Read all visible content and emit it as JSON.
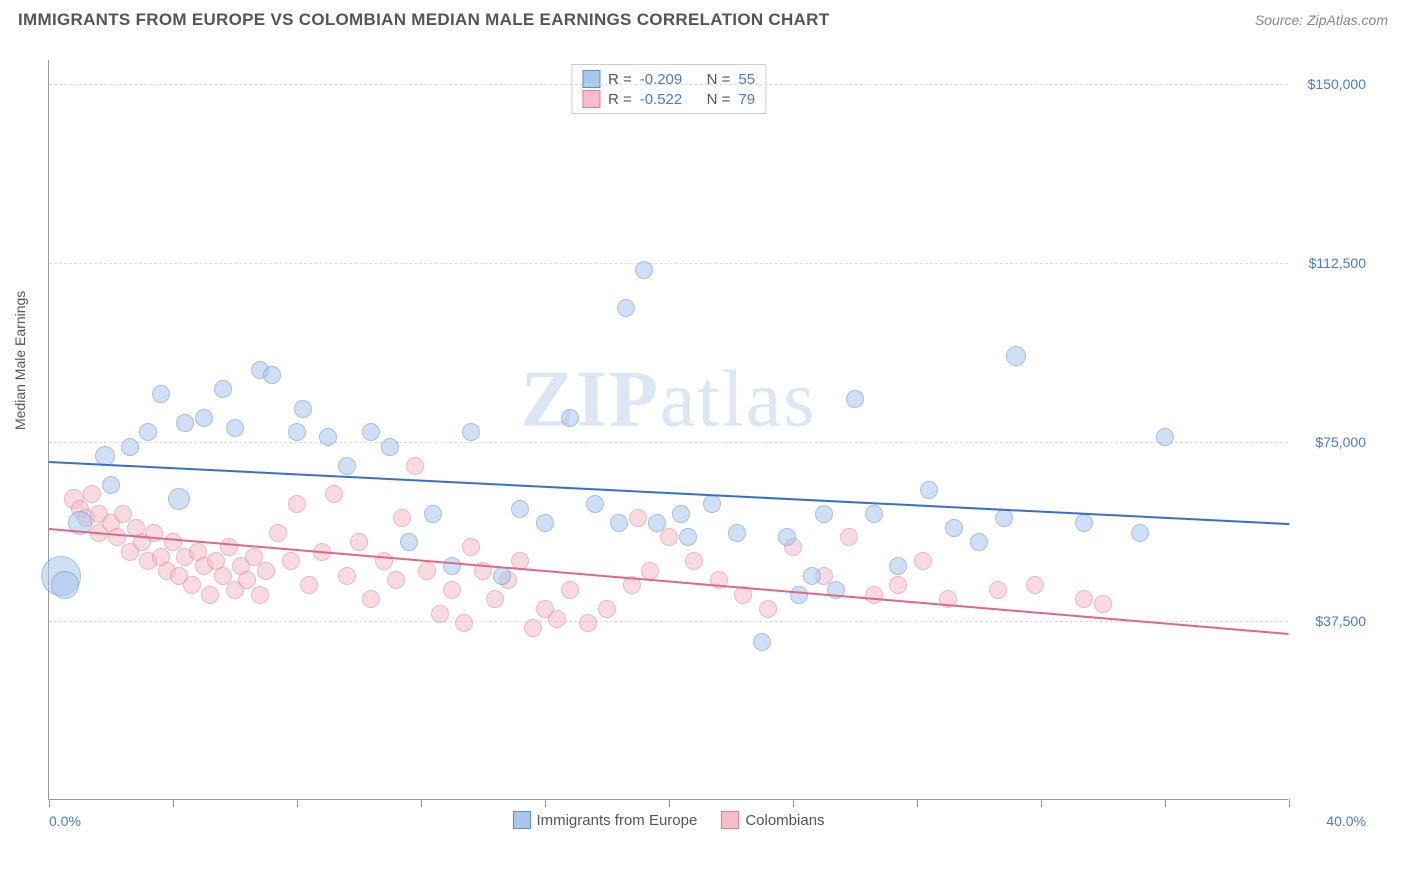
{
  "header": {
    "title": "IMMIGRANTS FROM EUROPE VS COLOMBIAN MEDIAN MALE EARNINGS CORRELATION CHART",
    "source": "Source: ZipAtlas.com"
  },
  "chart": {
    "type": "scatter",
    "y_axis_label": "Median Male Earnings",
    "watermark": "ZIPatlas",
    "background_color": "#ffffff",
    "grid_color": "#dddddd",
    "axis_color": "#999999",
    "xlim": [
      0,
      40
    ],
    "ylim": [
      0,
      155000
    ],
    "x_tick_positions": [
      0,
      4,
      8,
      12,
      16,
      20,
      24,
      28,
      32,
      36,
      40
    ],
    "x_label_min": "0.0%",
    "x_label_max": "40.0%",
    "y_gridlines": [
      {
        "value": 37500,
        "label": "$37,500"
      },
      {
        "value": 75000,
        "label": "$75,000"
      },
      {
        "value": 112500,
        "label": "$112,500"
      },
      {
        "value": 150000,
        "label": "$150,000"
      }
    ],
    "series": [
      {
        "name": "Immigrants from Europe",
        "color_fill": "#a9c6ec",
        "color_stroke": "#5b8fd6",
        "fill_opacity": 0.55,
        "marker_radius": 9,
        "R": "-0.209",
        "N": "55",
        "trend": {
          "y_at_xmin": 71000,
          "y_at_xmax": 58000,
          "color": "#3a6fc7",
          "width": 2
        },
        "points": [
          {
            "x": 0.4,
            "y": 47000,
            "r": 20
          },
          {
            "x": 0.5,
            "y": 45000,
            "r": 14
          },
          {
            "x": 1.0,
            "y": 58000,
            "r": 12
          },
          {
            "x": 1.8,
            "y": 72000,
            "r": 10
          },
          {
            "x": 2.0,
            "y": 66000,
            "r": 9
          },
          {
            "x": 2.6,
            "y": 74000,
            "r": 9
          },
          {
            "x": 3.2,
            "y": 77000,
            "r": 9
          },
          {
            "x": 3.6,
            "y": 85000,
            "r": 9
          },
          {
            "x": 4.4,
            "y": 79000,
            "r": 9
          },
          {
            "x": 4.2,
            "y": 63000,
            "r": 11
          },
          {
            "x": 5.0,
            "y": 80000,
            "r": 9
          },
          {
            "x": 5.6,
            "y": 86000,
            "r": 9
          },
          {
            "x": 6.0,
            "y": 78000,
            "r": 9
          },
          {
            "x": 6.8,
            "y": 90000,
            "r": 9
          },
          {
            "x": 7.2,
            "y": 89000,
            "r": 9
          },
          {
            "x": 8.0,
            "y": 77000,
            "r": 9
          },
          {
            "x": 8.2,
            "y": 82000,
            "r": 9
          },
          {
            "x": 9.0,
            "y": 76000,
            "r": 9
          },
          {
            "x": 9.6,
            "y": 70000,
            "r": 9
          },
          {
            "x": 10.4,
            "y": 77000,
            "r": 9
          },
          {
            "x": 11.0,
            "y": 74000,
            "r": 9
          },
          {
            "x": 11.6,
            "y": 54000,
            "r": 9
          },
          {
            "x": 12.4,
            "y": 60000,
            "r": 9
          },
          {
            "x": 13.0,
            "y": 49000,
            "r": 9
          },
          {
            "x": 13.6,
            "y": 77000,
            "r": 9
          },
          {
            "x": 14.6,
            "y": 47000,
            "r": 9
          },
          {
            "x": 15.2,
            "y": 61000,
            "r": 9
          },
          {
            "x": 16.0,
            "y": 58000,
            "r": 9
          },
          {
            "x": 16.8,
            "y": 80000,
            "r": 9
          },
          {
            "x": 17.6,
            "y": 62000,
            "r": 9
          },
          {
            "x": 18.4,
            "y": 58000,
            "r": 9
          },
          {
            "x": 18.6,
            "y": 103000,
            "r": 9
          },
          {
            "x": 19.6,
            "y": 58000,
            "r": 9
          },
          {
            "x": 19.2,
            "y": 111000,
            "r": 9
          },
          {
            "x": 20.4,
            "y": 60000,
            "r": 9
          },
          {
            "x": 20.6,
            "y": 55000,
            "r": 9
          },
          {
            "x": 21.4,
            "y": 62000,
            "r": 9
          },
          {
            "x": 22.2,
            "y": 56000,
            "r": 9
          },
          {
            "x": 23.0,
            "y": 33000,
            "r": 9
          },
          {
            "x": 23.8,
            "y": 55000,
            "r": 9
          },
          {
            "x": 24.2,
            "y": 43000,
            "r": 9
          },
          {
            "x": 24.6,
            "y": 47000,
            "r": 9
          },
          {
            "x": 25.4,
            "y": 44000,
            "r": 9
          },
          {
            "x": 26.0,
            "y": 84000,
            "r": 9
          },
          {
            "x": 26.6,
            "y": 60000,
            "r": 9
          },
          {
            "x": 27.4,
            "y": 49000,
            "r": 9
          },
          {
            "x": 28.4,
            "y": 65000,
            "r": 9
          },
          {
            "x": 29.2,
            "y": 57000,
            "r": 9
          },
          {
            "x": 30.0,
            "y": 54000,
            "r": 9
          },
          {
            "x": 31.2,
            "y": 93000,
            "r": 10
          },
          {
            "x": 33.4,
            "y": 58000,
            "r": 9
          },
          {
            "x": 35.2,
            "y": 56000,
            "r": 9
          },
          {
            "x": 36.0,
            "y": 76000,
            "r": 9
          },
          {
            "x": 30.8,
            "y": 59000,
            "r": 9
          },
          {
            "x": 25.0,
            "y": 60000,
            "r": 9
          }
        ]
      },
      {
        "name": "Colombians",
        "color_fill": "#f5bcc9",
        "color_stroke": "#e07f9a",
        "fill_opacity": 0.55,
        "marker_radius": 8,
        "R": "-0.522",
        "N": "79",
        "trend": {
          "y_at_xmin": 57000,
          "y_at_xmax": 35000,
          "color": "#e06788",
          "width": 2
        },
        "points": [
          {
            "x": 0.8,
            "y": 63000,
            "r": 10
          },
          {
            "x": 1.0,
            "y": 61000,
            "r": 9
          },
          {
            "x": 1.2,
            "y": 59000,
            "r": 9
          },
          {
            "x": 1.4,
            "y": 64000,
            "r": 9
          },
          {
            "x": 1.6,
            "y": 60000,
            "r": 9
          },
          {
            "x": 1.6,
            "y": 56000,
            "r": 9
          },
          {
            "x": 2.0,
            "y": 58000,
            "r": 9
          },
          {
            "x": 2.2,
            "y": 55000,
            "r": 9
          },
          {
            "x": 2.4,
            "y": 60000,
            "r": 9
          },
          {
            "x": 2.6,
            "y": 52000,
            "r": 9
          },
          {
            "x": 2.8,
            "y": 57000,
            "r": 9
          },
          {
            "x": 3.0,
            "y": 54000,
            "r": 9
          },
          {
            "x": 3.2,
            "y": 50000,
            "r": 9
          },
          {
            "x": 3.4,
            "y": 56000,
            "r": 9
          },
          {
            "x": 3.6,
            "y": 51000,
            "r": 9
          },
          {
            "x": 3.8,
            "y": 48000,
            "r": 9
          },
          {
            "x": 4.0,
            "y": 54000,
            "r": 9
          },
          {
            "x": 4.2,
            "y": 47000,
            "r": 9
          },
          {
            "x": 4.4,
            "y": 51000,
            "r": 9
          },
          {
            "x": 4.6,
            "y": 45000,
            "r": 9
          },
          {
            "x": 4.8,
            "y": 52000,
            "r": 9
          },
          {
            "x": 5.0,
            "y": 49000,
            "r": 9
          },
          {
            "x": 5.2,
            "y": 43000,
            "r": 9
          },
          {
            "x": 5.4,
            "y": 50000,
            "r": 9
          },
          {
            "x": 5.6,
            "y": 47000,
            "r": 9
          },
          {
            "x": 5.8,
            "y": 53000,
            "r": 9
          },
          {
            "x": 6.0,
            "y": 44000,
            "r": 9
          },
          {
            "x": 6.2,
            "y": 49000,
            "r": 9
          },
          {
            "x": 6.4,
            "y": 46000,
            "r": 9
          },
          {
            "x": 6.6,
            "y": 51000,
            "r": 9
          },
          {
            "x": 6.8,
            "y": 43000,
            "r": 9
          },
          {
            "x": 7.0,
            "y": 48000,
            "r": 9
          },
          {
            "x": 7.4,
            "y": 56000,
            "r": 9
          },
          {
            "x": 7.8,
            "y": 50000,
            "r": 9
          },
          {
            "x": 8.0,
            "y": 62000,
            "r": 9
          },
          {
            "x": 8.4,
            "y": 45000,
            "r": 9
          },
          {
            "x": 8.8,
            "y": 52000,
            "r": 9
          },
          {
            "x": 9.2,
            "y": 64000,
            "r": 9
          },
          {
            "x": 9.6,
            "y": 47000,
            "r": 9
          },
          {
            "x": 10.0,
            "y": 54000,
            "r": 9
          },
          {
            "x": 10.4,
            "y": 42000,
            "r": 9
          },
          {
            "x": 10.8,
            "y": 50000,
            "r": 9
          },
          {
            "x": 11.2,
            "y": 46000,
            "r": 9
          },
          {
            "x": 11.4,
            "y": 59000,
            "r": 9
          },
          {
            "x": 11.8,
            "y": 70000,
            "r": 9
          },
          {
            "x": 12.2,
            "y": 48000,
            "r": 9
          },
          {
            "x": 12.6,
            "y": 39000,
            "r": 9
          },
          {
            "x": 13.0,
            "y": 44000,
            "r": 9
          },
          {
            "x": 13.4,
            "y": 37000,
            "r": 9
          },
          {
            "x": 13.6,
            "y": 53000,
            "r": 9
          },
          {
            "x": 14.0,
            "y": 48000,
            "r": 9
          },
          {
            "x": 14.4,
            "y": 42000,
            "r": 9
          },
          {
            "x": 14.8,
            "y": 46000,
            "r": 9
          },
          {
            "x": 15.2,
            "y": 50000,
            "r": 9
          },
          {
            "x": 15.6,
            "y": 36000,
            "r": 9
          },
          {
            "x": 16.0,
            "y": 40000,
            "r": 9
          },
          {
            "x": 16.4,
            "y": 38000,
            "r": 9
          },
          {
            "x": 16.8,
            "y": 44000,
            "r": 9
          },
          {
            "x": 17.4,
            "y": 37000,
            "r": 9
          },
          {
            "x": 18.0,
            "y": 40000,
            "r": 9
          },
          {
            "x": 18.8,
            "y": 45000,
            "r": 9
          },
          {
            "x": 19.4,
            "y": 48000,
            "r": 9
          },
          {
            "x": 20.0,
            "y": 55000,
            "r": 9
          },
          {
            "x": 20.8,
            "y": 50000,
            "r": 9
          },
          {
            "x": 21.6,
            "y": 46000,
            "r": 9
          },
          {
            "x": 22.4,
            "y": 43000,
            "r": 9
          },
          {
            "x": 23.2,
            "y": 40000,
            "r": 9
          },
          {
            "x": 24.0,
            "y": 53000,
            "r": 9
          },
          {
            "x": 25.0,
            "y": 47000,
            "r": 9
          },
          {
            "x": 25.8,
            "y": 55000,
            "r": 9
          },
          {
            "x": 26.6,
            "y": 43000,
            "r": 9
          },
          {
            "x": 27.4,
            "y": 45000,
            "r": 9
          },
          {
            "x": 28.2,
            "y": 50000,
            "r": 9
          },
          {
            "x": 29.0,
            "y": 42000,
            "r": 9
          },
          {
            "x": 30.6,
            "y": 44000,
            "r": 9
          },
          {
            "x": 31.8,
            "y": 45000,
            "r": 9
          },
          {
            "x": 33.4,
            "y": 42000,
            "r": 9
          },
          {
            "x": 34.0,
            "y": 41000,
            "r": 9
          },
          {
            "x": 19.0,
            "y": 59000,
            "r": 9
          }
        ]
      }
    ],
    "legend_bottom": [
      {
        "label": "Immigrants from Europe",
        "fill": "#a9c6ec",
        "stroke": "#5b8fd6"
      },
      {
        "label": "Colombians",
        "fill": "#f5bcc9",
        "stroke": "#e07f9a"
      }
    ]
  }
}
